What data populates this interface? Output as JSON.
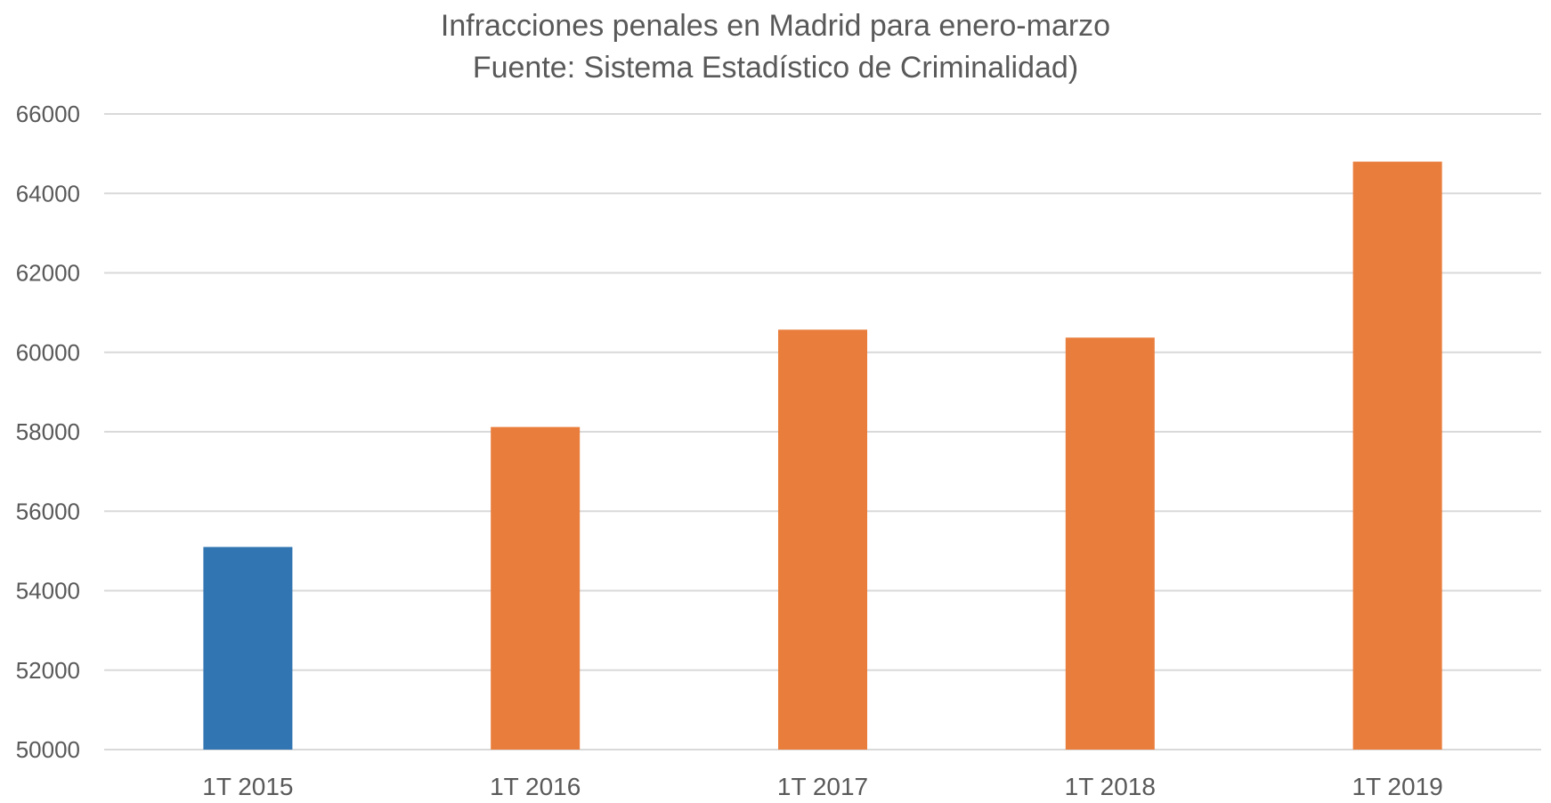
{
  "chart_data": {
    "type": "bar",
    "title": "Infracciones penales en Madrid para enero-marzo",
    "subtitle": "Fuente: Sistema Estadístico de Criminalidad)",
    "categories": [
      "1T 2015",
      "1T 2016",
      "1T 2017",
      "1T 2018",
      "1T 2019"
    ],
    "values": [
      55100,
      58120,
      60570,
      60370,
      64800
    ],
    "bar_colors": [
      "#3175b2",
      "#e97d3c",
      "#e97d3c",
      "#e97d3c",
      "#e97d3c"
    ],
    "xlabel": "",
    "ylabel": "",
    "ylim": [
      50000,
      66000
    ],
    "yticks": [
      50000,
      52000,
      54000,
      56000,
      58000,
      60000,
      62000,
      64000,
      66000
    ],
    "grid": true,
    "gridline_color": "#d9d9d9",
    "legend": "none"
  }
}
